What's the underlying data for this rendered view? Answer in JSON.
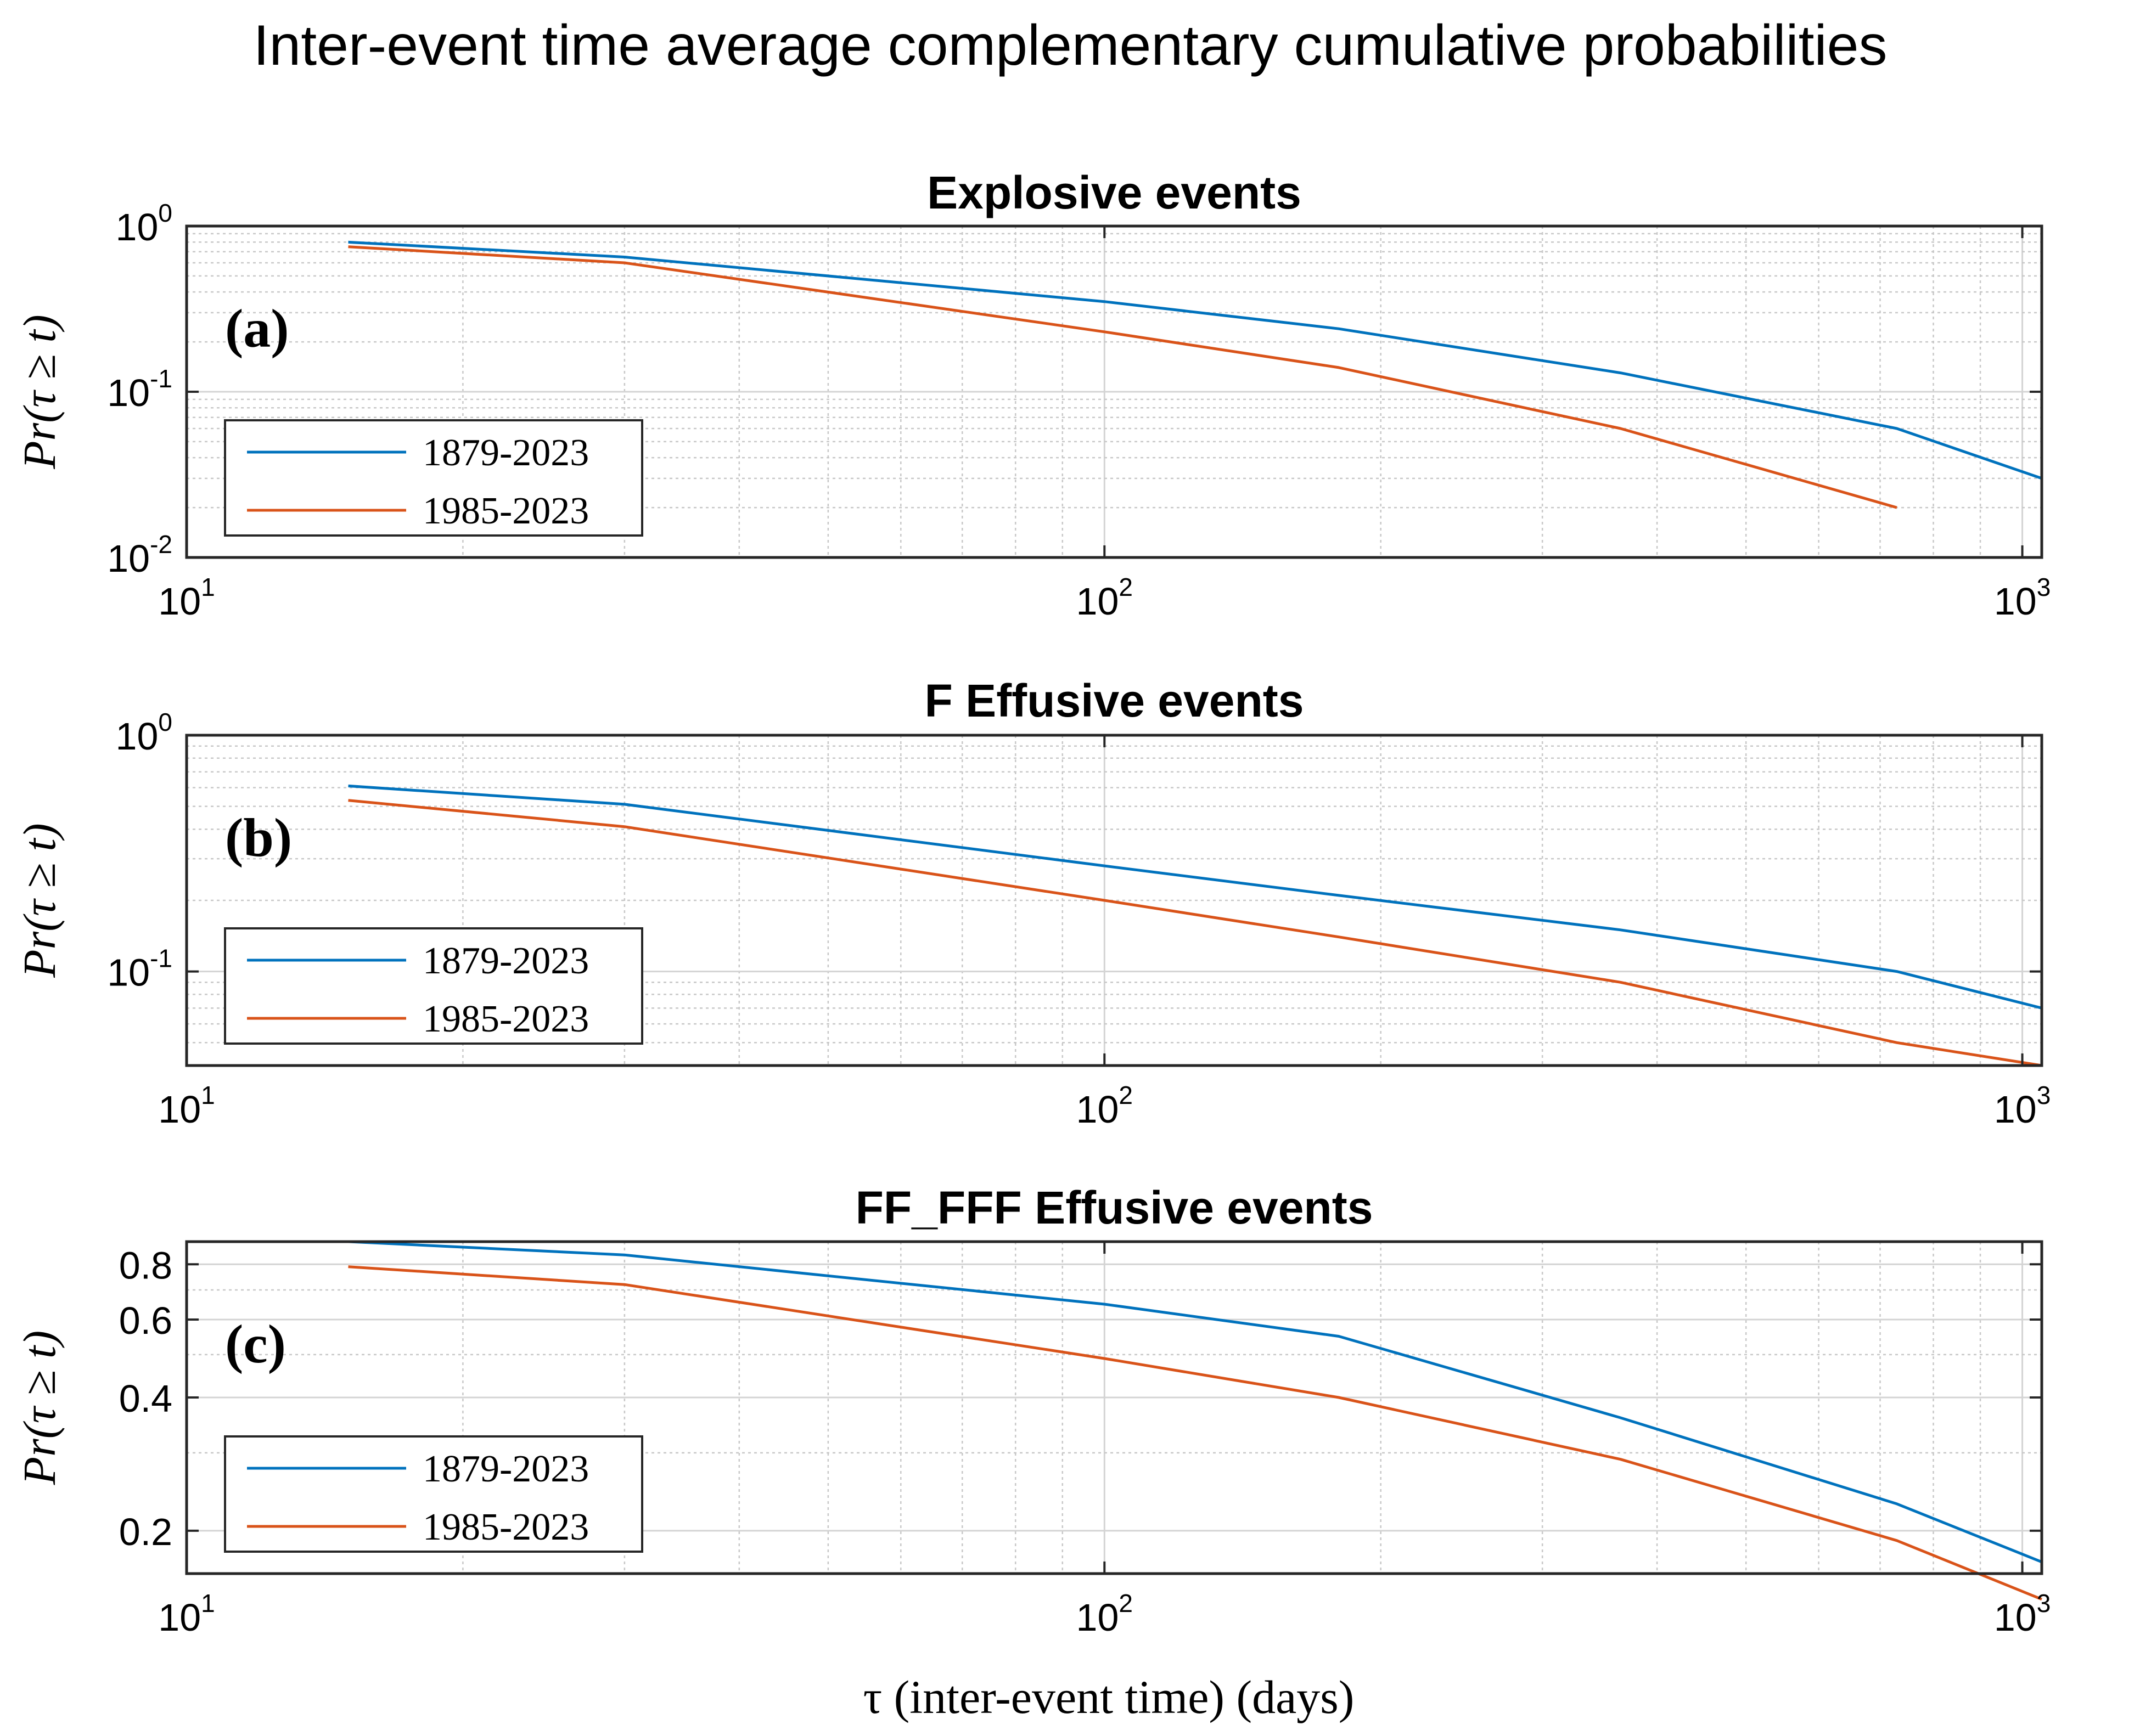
{
  "title": "Inter-event time average complementary cumulative probabilities",
  "colors": {
    "blue": "#0072BD",
    "orange": "#D95319"
  },
  "ylabel": "Pr(τ ≥ t)",
  "xlabel": "τ (inter-event time) (days)",
  "chart_data": [
    {
      "type": "line",
      "panel_label": "(a)",
      "title": "Explosive events",
      "xscale": "log",
      "yscale": "log",
      "xlim": [
        10,
        1050
      ],
      "ylim": [
        0.01,
        1
      ],
      "grid": true,
      "legend_position": "lower-left",
      "xticks": [
        {
          "base": "10",
          "exp": "1"
        },
        {
          "base": "10",
          "exp": "2"
        },
        {
          "base": "10",
          "exp": "3"
        }
      ],
      "yticks": [
        {
          "value": 0.01,
          "base": "10",
          "exp": "-2"
        },
        {
          "value": 0.1,
          "base": "10",
          "exp": "-1"
        },
        {
          "value": 1,
          "base": "10",
          "exp": "0"
        }
      ],
      "series": [
        {
          "name": "1879-2023",
          "color": "#0072BD",
          "x": [
            15,
            30,
            100,
            180,
            365,
            730,
            1050
          ],
          "y": [
            0.8,
            0.65,
            0.35,
            0.24,
            0.13,
            0.06,
            0.03
          ]
        },
        {
          "name": "1985-2023",
          "color": "#D95319",
          "x": [
            15,
            30,
            100,
            180,
            365,
            730
          ],
          "y": [
            0.75,
            0.6,
            0.23,
            0.14,
            0.06,
            0.02
          ]
        }
      ]
    },
    {
      "type": "line",
      "panel_label": "(b)",
      "title": "F Effusive events",
      "xscale": "log",
      "yscale": "log",
      "xlim": [
        10,
        1050
      ],
      "ylim": [
        0.04,
        1
      ],
      "grid": true,
      "legend_position": "lower-left",
      "xticks": [
        {
          "base": "10",
          "exp": "1"
        },
        {
          "base": "10",
          "exp": "2"
        },
        {
          "base": "10",
          "exp": "3"
        }
      ],
      "yticks": [
        {
          "value": 0.1,
          "base": "10",
          "exp": "-1"
        },
        {
          "value": 1,
          "base": "10",
          "exp": "0"
        }
      ],
      "series": [
        {
          "name": "1879-2023",
          "color": "#0072BD",
          "x": [
            15,
            30,
            100,
            180,
            365,
            730,
            1050
          ],
          "y": [
            0.61,
            0.51,
            0.28,
            0.21,
            0.15,
            0.1,
            0.07
          ]
        },
        {
          "name": "1985-2023",
          "color": "#D95319",
          "x": [
            15,
            30,
            100,
            180,
            365,
            730,
            1050
          ],
          "y": [
            0.53,
            0.41,
            0.2,
            0.14,
            0.09,
            0.05,
            0.04
          ]
        }
      ]
    },
    {
      "type": "line",
      "panel_label": "(c)",
      "title": "FF_FFF Effusive  events",
      "xscale": "log",
      "yscale": "log",
      "xlim": [
        10,
        1050
      ],
      "ylim": [
        0.16,
        0.9
      ],
      "grid": true,
      "legend_position": "lower-left",
      "xticks": [
        {
          "base": "10",
          "exp": "1"
        },
        {
          "base": "10",
          "exp": "2"
        },
        {
          "base": "10",
          "exp": "3"
        }
      ],
      "yticks": [
        {
          "value": 0.2,
          "text": "0.2"
        },
        {
          "value": 0.4,
          "text": "0.4"
        },
        {
          "value": 0.6,
          "text": "0.6"
        },
        {
          "value": 0.8,
          "text": "0.8"
        }
      ],
      "series": [
        {
          "name": "1879-2023",
          "color": "#0072BD",
          "x": [
            15,
            30,
            100,
            180,
            365,
            730,
            1050
          ],
          "y": [
            0.9,
            0.84,
            0.65,
            0.55,
            0.36,
            0.23,
            0.17
          ]
        },
        {
          "name": "1985-2023",
          "color": "#D95319",
          "x": [
            15,
            30,
            100,
            180,
            365,
            730,
            1050
          ],
          "y": [
            0.79,
            0.72,
            0.49,
            0.4,
            0.29,
            0.19,
            0.14
          ]
        }
      ]
    }
  ]
}
